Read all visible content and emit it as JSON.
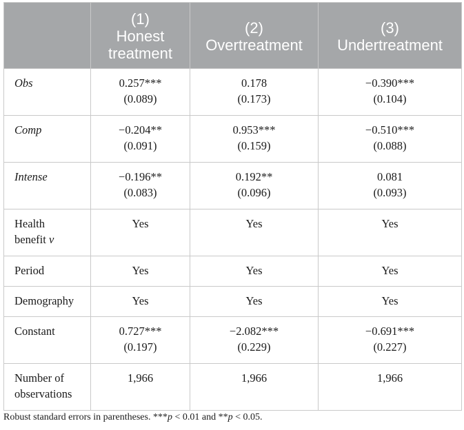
{
  "table": {
    "header": {
      "corner": "",
      "columns": [
        {
          "number": "(1)",
          "title_line1": "Honest",
          "title_line2": "treatment"
        },
        {
          "number": "(2)",
          "title_line1": "Overtreatment",
          "title_line2": ""
        },
        {
          "number": "(3)",
          "title_line1": "Undertreatment",
          "title_line2": ""
        }
      ]
    },
    "rows": [
      {
        "label": "Obs",
        "label_line2": "",
        "italic": true,
        "cells": [
          {
            "estimate": "0.257***",
            "se": "(0.089)"
          },
          {
            "estimate": "0.178",
            "se": "(0.173)"
          },
          {
            "estimate": "−0.390***",
            "se": "(0.104)"
          }
        ]
      },
      {
        "label": "Comp",
        "label_line2": "",
        "italic": true,
        "cells": [
          {
            "estimate": "−0.204**",
            "se": "(0.091)"
          },
          {
            "estimate": "0.953***",
            "se": "(0.159)"
          },
          {
            "estimate": "−0.510***",
            "se": "(0.088)"
          }
        ]
      },
      {
        "label": "Intense",
        "label_line2": "",
        "italic": true,
        "cells": [
          {
            "estimate": "−0.196**",
            "se": "(0.083)"
          },
          {
            "estimate": "0.192**",
            "se": "(0.096)"
          },
          {
            "estimate": "0.081",
            "se": "(0.093)"
          }
        ]
      },
      {
        "label": "Health",
        "label_line2": "benefit",
        "label_var": "v",
        "italic": false,
        "cells": [
          {
            "estimate": "Yes",
            "se": ""
          },
          {
            "estimate": "Yes",
            "se": ""
          },
          {
            "estimate": "Yes",
            "se": ""
          }
        ]
      },
      {
        "label": "Period",
        "label_line2": "",
        "italic": false,
        "cells": [
          {
            "estimate": "Yes",
            "se": ""
          },
          {
            "estimate": "Yes",
            "se": ""
          },
          {
            "estimate": "Yes",
            "se": ""
          }
        ]
      },
      {
        "label": "Demography",
        "label_line2": "",
        "italic": false,
        "cells": [
          {
            "estimate": "Yes",
            "se": ""
          },
          {
            "estimate": "Yes",
            "se": ""
          },
          {
            "estimate": "Yes",
            "se": ""
          }
        ]
      },
      {
        "label": "Constant",
        "label_line2": "",
        "italic": false,
        "cells": [
          {
            "estimate": "0.727***",
            "se": "(0.197)"
          },
          {
            "estimate": "−2.082***",
            "se": "(0.229)"
          },
          {
            "estimate": "−0.691***",
            "se": "(0.227)"
          }
        ]
      },
      {
        "label": "Number of",
        "label_line2": "observations",
        "italic": false,
        "cells": [
          {
            "estimate": "1,966",
            "se": ""
          },
          {
            "estimate": "1,966",
            "se": ""
          },
          {
            "estimate": "1,966",
            "se": ""
          }
        ]
      }
    ]
  },
  "note": {
    "lead": "Robust standard errors in parentheses. ***",
    "p1_var": "p",
    "p1_cond": " < 0.01 and **",
    "p2_var": "p",
    "p2_cond": " < 0.05."
  }
}
